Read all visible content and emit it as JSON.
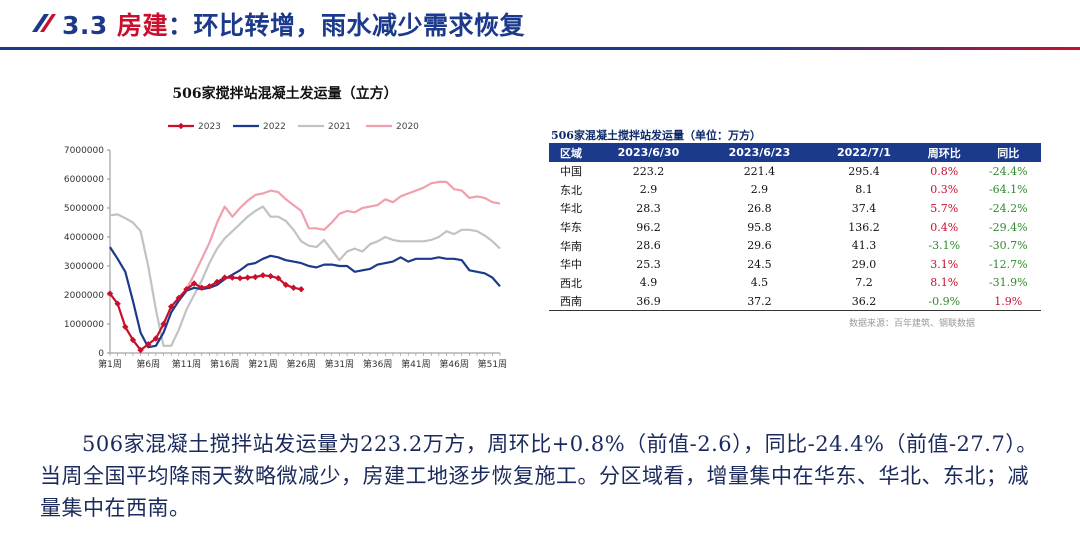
{
  "header": {
    "section_number": "3.3",
    "title_accent": "房建",
    "title_rest": "：环比转增，雨水减少需求恢复"
  },
  "colors": {
    "brand_blue": "#1b3a8c",
    "brand_red": "#c8102e",
    "negative_green": "#2e8b2e"
  },
  "chart_data": {
    "type": "line",
    "title": "506家搅拌站混凝土发运量（立方）",
    "xlabel": "",
    "ylabel": "",
    "ylim": [
      0,
      7000000
    ],
    "yticks": [
      "7000000",
      "6000000",
      "5000000",
      "4000000",
      "3000000",
      "2000000",
      "1000000",
      "0"
    ],
    "ytick_values": [
      7000000,
      6000000,
      5000000,
      4000000,
      3000000,
      2000000,
      1000000,
      0
    ],
    "x_range": [
      1,
      52
    ],
    "xticks": [
      "第1周",
      "第6周",
      "第11周",
      "第16周",
      "第21周",
      "第26周",
      "第31周",
      "第36周",
      "第41周",
      "第46周",
      "第51周"
    ],
    "xtick_values": [
      1,
      6,
      11,
      16,
      21,
      26,
      31,
      36,
      41,
      46,
      51
    ],
    "legend_position": "top",
    "series": [
      {
        "name": "2023",
        "color": "#c8102e",
        "marker": "diamond",
        "weeks": [
          1,
          2,
          3,
          4,
          5,
          6,
          7,
          8,
          9,
          10,
          11,
          12,
          13,
          14,
          15,
          16,
          17,
          18,
          19,
          20,
          21,
          22,
          23,
          24,
          25,
          26
        ],
        "values": [
          2050000,
          1700000,
          900000,
          450000,
          100000,
          300000,
          500000,
          1000000,
          1600000,
          1900000,
          2200000,
          2400000,
          2250000,
          2300000,
          2450000,
          2600000,
          2600000,
          2580000,
          2600000,
          2620000,
          2680000,
          2650000,
          2580000,
          2350000,
          2250000,
          2200000
        ]
      },
      {
        "name": "2022",
        "color": "#1b3a8c",
        "marker": "none",
        "weeks": [
          1,
          2,
          3,
          4,
          5,
          6,
          7,
          8,
          9,
          10,
          11,
          12,
          13,
          14,
          15,
          16,
          17,
          18,
          19,
          20,
          21,
          22,
          23,
          24,
          25,
          26,
          27,
          28,
          29,
          30,
          31,
          32,
          33,
          34,
          35,
          36,
          37,
          38,
          39,
          40,
          41,
          42,
          43,
          44,
          45,
          46,
          47,
          48,
          49,
          50,
          51,
          52
        ],
        "values": [
          3650000,
          3250000,
          2800000,
          1800000,
          700000,
          200000,
          250000,
          700000,
          1400000,
          1800000,
          2150000,
          2250000,
          2200000,
          2250000,
          2350000,
          2550000,
          2700000,
          2850000,
          3050000,
          3100000,
          3250000,
          3350000,
          3300000,
          3200000,
          3150000,
          3100000,
          3000000,
          2950000,
          3050000,
          3050000,
          3000000,
          3000000,
          2800000,
          2850000,
          2900000,
          3050000,
          3100000,
          3150000,
          3300000,
          3150000,
          3250000,
          3250000,
          3250000,
          3300000,
          3250000,
          3250000,
          3200000,
          2850000,
          2800000,
          2750000,
          2600000,
          2300000
        ]
      },
      {
        "name": "2021",
        "color": "#c2c2c2",
        "marker": "none",
        "weeks": [
          1,
          2,
          3,
          4,
          5,
          6,
          7,
          8,
          9,
          10,
          11,
          12,
          13,
          14,
          15,
          16,
          17,
          18,
          19,
          20,
          21,
          22,
          23,
          24,
          25,
          26,
          27,
          28,
          29,
          30,
          31,
          32,
          33,
          34,
          35,
          36,
          37,
          38,
          39,
          40,
          41,
          42,
          43,
          44,
          45,
          46,
          47,
          48,
          49,
          50,
          51,
          52
        ],
        "values": [
          4750000,
          4780000,
          4650000,
          4500000,
          4200000,
          3000000,
          1500000,
          250000,
          250000,
          800000,
          1500000,
          2000000,
          2500000,
          3100000,
          3600000,
          3950000,
          4200000,
          4450000,
          4700000,
          4900000,
          5050000,
          4700000,
          4700000,
          4550000,
          4250000,
          3850000,
          3700000,
          3650000,
          3900000,
          3550000,
          3200000,
          3500000,
          3600000,
          3500000,
          3750000,
          3850000,
          4000000,
          3900000,
          3850000,
          3850000,
          3850000,
          3850000,
          3900000,
          4000000,
          4200000,
          4100000,
          4250000,
          4250000,
          4200000,
          4050000,
          3850000,
          3600000
        ]
      },
      {
        "name": "2020",
        "color": "#f0a0ad",
        "marker": "none",
        "weeks": [
          11,
          12,
          13,
          14,
          15,
          16,
          17,
          18,
          19,
          20,
          21,
          22,
          23,
          24,
          25,
          26,
          27,
          28,
          29,
          30,
          31,
          32,
          33,
          34,
          35,
          36,
          37,
          38,
          39,
          40,
          41,
          42,
          43,
          44,
          45,
          46,
          47,
          48,
          49,
          50,
          51,
          52
        ],
        "values": [
          2200000,
          2700000,
          3250000,
          3800000,
          4500000,
          5050000,
          4700000,
          5000000,
          5250000,
          5450000,
          5500000,
          5600000,
          5550000,
          5300000,
          5100000,
          4900000,
          4300000,
          4300000,
          4250000,
          4500000,
          4800000,
          4900000,
          4850000,
          5000000,
          5050000,
          5100000,
          5300000,
          5200000,
          5400000,
          5500000,
          5600000,
          5700000,
          5850000,
          5900000,
          5900000,
          5650000,
          5600000,
          5350000,
          5400000,
          5350000,
          5200000,
          5150000
        ]
      }
    ]
  },
  "table": {
    "title": "506家混凝土搅拌站发运量（单位：万方）",
    "headers": [
      "区域",
      "2023/6/30",
      "2023/6/23",
      "2022/7/1",
      "周环比",
      "同比"
    ],
    "rows": [
      {
        "region": "中国",
        "v1": "223.2",
        "v2": "221.4",
        "v3": "295.4",
        "wow": "0.8%",
        "yoy": "-24.4%"
      },
      {
        "region": "东北",
        "v1": "2.9",
        "v2": "2.9",
        "v3": "8.1",
        "wow": "0.3%",
        "yoy": "-64.1%"
      },
      {
        "region": "华北",
        "v1": "28.3",
        "v2": "26.8",
        "v3": "37.4",
        "wow": "5.7%",
        "yoy": "-24.2%"
      },
      {
        "region": "华东",
        "v1": "96.2",
        "v2": "95.8",
        "v3": "136.2",
        "wow": "0.4%",
        "yoy": "-29.4%"
      },
      {
        "region": "华南",
        "v1": "28.6",
        "v2": "29.6",
        "v3": "41.3",
        "wow": "-3.1%",
        "yoy": "-30.7%"
      },
      {
        "region": "华中",
        "v1": "25.3",
        "v2": "24.5",
        "v3": "29.0",
        "wow": "3.1%",
        "yoy": "-12.7%"
      },
      {
        "region": "西北",
        "v1": "4.9",
        "v2": "4.5",
        "v3": "7.2",
        "wow": "8.1%",
        "yoy": "-31.9%"
      },
      {
        "region": "西南",
        "v1": "36.9",
        "v2": "37.2",
        "v3": "36.2",
        "wow": "-0.9%",
        "yoy": "1.9%"
      }
    ],
    "source": "数据来源：百年建筑、钢联数据"
  },
  "summary": {
    "text": "506家混凝土搅拌站发运量为223.2万方，周环比+0.8%（前值-2.6），同比-24.4%（前值-27.7）。当周全国平均降雨天数略微减少，房建工地逐步恢复施工。分区域看，增量集中在华东、华北、东北；减量集中在西南。"
  }
}
